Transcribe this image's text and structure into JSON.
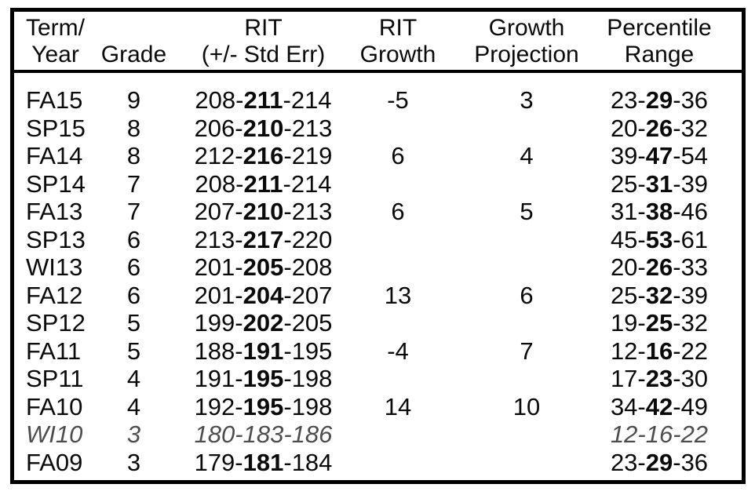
{
  "chart_data": {
    "type": "table",
    "columns": [
      "Term/Year",
      "Grade",
      "RIT (+/- Std Err)",
      "RIT Growth",
      "Growth Projection",
      "Percentile Range"
    ],
    "rows": [
      [
        "FA15",
        "9",
        "208-211-214",
        "-5",
        "3",
        "23-29-36"
      ],
      [
        "SP15",
        "8",
        "206-210-213",
        "",
        "",
        "20-26-32"
      ],
      [
        "FA14",
        "8",
        "212-216-219",
        "6",
        "4",
        "39-47-54"
      ],
      [
        "SP14",
        "7",
        "208-211-214",
        "",
        "",
        "25-31-39"
      ],
      [
        "FA13",
        "7",
        "207-210-213",
        "6",
        "5",
        "31-38-46"
      ],
      [
        "SP13",
        "6",
        "213-217-220",
        "",
        "",
        "45-53-61"
      ],
      [
        "WI13",
        "6",
        "201-205-208",
        "",
        "",
        "20-26-33"
      ],
      [
        "FA12",
        "6",
        "201-204-207",
        "13",
        "6",
        "25-32-39"
      ],
      [
        "SP12",
        "5",
        "199-202-205",
        "",
        "",
        "19-25-32"
      ],
      [
        "FA11",
        "5",
        "188-191-195",
        "-4",
        "7",
        "12-16-22"
      ],
      [
        "SP11",
        "4",
        "191-195-198",
        "",
        "",
        "17-23-30"
      ],
      [
        "FA10",
        "4",
        "192-195-198",
        "14",
        "10",
        "34-42-49"
      ],
      [
        "WI10",
        "3",
        "180-183-186",
        "",
        "",
        "12-16-22"
      ],
      [
        "FA09",
        "3",
        "179-181-184",
        "",
        "",
        "23-29-36"
      ]
    ],
    "notes": "Middle value of each RIT and Percentile range is bold; WI10 row is rendered in gray italics (de-emphasized)."
  },
  "table": {
    "headers": {
      "term_year": [
        "Term/",
        "Year"
      ],
      "grade": "Grade",
      "rit": [
        "RIT",
        "(+/- Std Err)"
      ],
      "rit_growth": [
        "RIT",
        "Growth"
      ],
      "growth_projection": [
        "Growth",
        "Projection"
      ],
      "percentile_range": [
        "Percentile",
        "Range"
      ]
    },
    "separator": "-",
    "rows": [
      {
        "term": "FA15",
        "grade": "9",
        "rit_low": "208",
        "rit_mid": "211",
        "rit_high": "214",
        "growth": "-5",
        "projection": "3",
        "pct_low": "23",
        "pct_mid": "29",
        "pct_high": "36"
      },
      {
        "term": "SP15",
        "grade": "8",
        "rit_low": "206",
        "rit_mid": "210",
        "rit_high": "213",
        "growth": "",
        "projection": "",
        "pct_low": "20",
        "pct_mid": "26",
        "pct_high": "32"
      },
      {
        "term": "FA14",
        "grade": "8",
        "rit_low": "212",
        "rit_mid": "216",
        "rit_high": "219",
        "growth": "6",
        "projection": "4",
        "pct_low": "39",
        "pct_mid": "47",
        "pct_high": "54"
      },
      {
        "term": "SP14",
        "grade": "7",
        "rit_low": "208",
        "rit_mid": "211",
        "rit_high": "214",
        "growth": "",
        "projection": "",
        "pct_low": "25",
        "pct_mid": "31",
        "pct_high": "39"
      },
      {
        "term": "FA13",
        "grade": "7",
        "rit_low": "207",
        "rit_mid": "210",
        "rit_high": "213",
        "growth": "6",
        "projection": "5",
        "pct_low": "31",
        "pct_mid": "38",
        "pct_high": "46"
      },
      {
        "term": "SP13",
        "grade": "6",
        "rit_low": "213",
        "rit_mid": "217",
        "rit_high": "220",
        "growth": "",
        "projection": "",
        "pct_low": "45",
        "pct_mid": "53",
        "pct_high": "61"
      },
      {
        "term": "WI13",
        "grade": "6",
        "rit_low": "201",
        "rit_mid": "205",
        "rit_high": "208",
        "growth": "",
        "projection": "",
        "pct_low": "20",
        "pct_mid": "26",
        "pct_high": "33"
      },
      {
        "term": "FA12",
        "grade": "6",
        "rit_low": "201",
        "rit_mid": "204",
        "rit_high": "207",
        "growth": "13",
        "projection": "6",
        "pct_low": "25",
        "pct_mid": "32",
        "pct_high": "39"
      },
      {
        "term": "SP12",
        "grade": "5",
        "rit_low": "199",
        "rit_mid": "202",
        "rit_high": "205",
        "growth": "",
        "projection": "",
        "pct_low": "19",
        "pct_mid": "25",
        "pct_high": "32"
      },
      {
        "term": "FA11",
        "grade": "5",
        "rit_low": "188",
        "rit_mid": "191",
        "rit_high": "195",
        "growth": "-4",
        "projection": "7",
        "pct_low": "12",
        "pct_mid": "16",
        "pct_high": "22"
      },
      {
        "term": "SP11",
        "grade": "4",
        "rit_low": "191",
        "rit_mid": "195",
        "rit_high": "198",
        "growth": "",
        "projection": "",
        "pct_low": "17",
        "pct_mid": "23",
        "pct_high": "30"
      },
      {
        "term": "FA10",
        "grade": "4",
        "rit_low": "192",
        "rit_mid": "195",
        "rit_high": "198",
        "growth": "14",
        "projection": "10",
        "pct_low": "34",
        "pct_mid": "42",
        "pct_high": "49"
      },
      {
        "term": "WI10",
        "grade": "3",
        "rit_low": "180",
        "rit_mid": "183",
        "rit_high": "186",
        "growth": "",
        "projection": "",
        "pct_low": "12",
        "pct_mid": "16",
        "pct_high": "22",
        "muted": true
      },
      {
        "term": "FA09",
        "grade": "3",
        "rit_low": "179",
        "rit_mid": "181",
        "rit_high": "184",
        "growth": "",
        "projection": "",
        "pct_low": "23",
        "pct_mid": "29",
        "pct_high": "36"
      }
    ]
  },
  "colors": {
    "text": "#0a0a0a",
    "muted": "#4d4d4d",
    "border": "#000000",
    "bg": "#ffffff"
  }
}
